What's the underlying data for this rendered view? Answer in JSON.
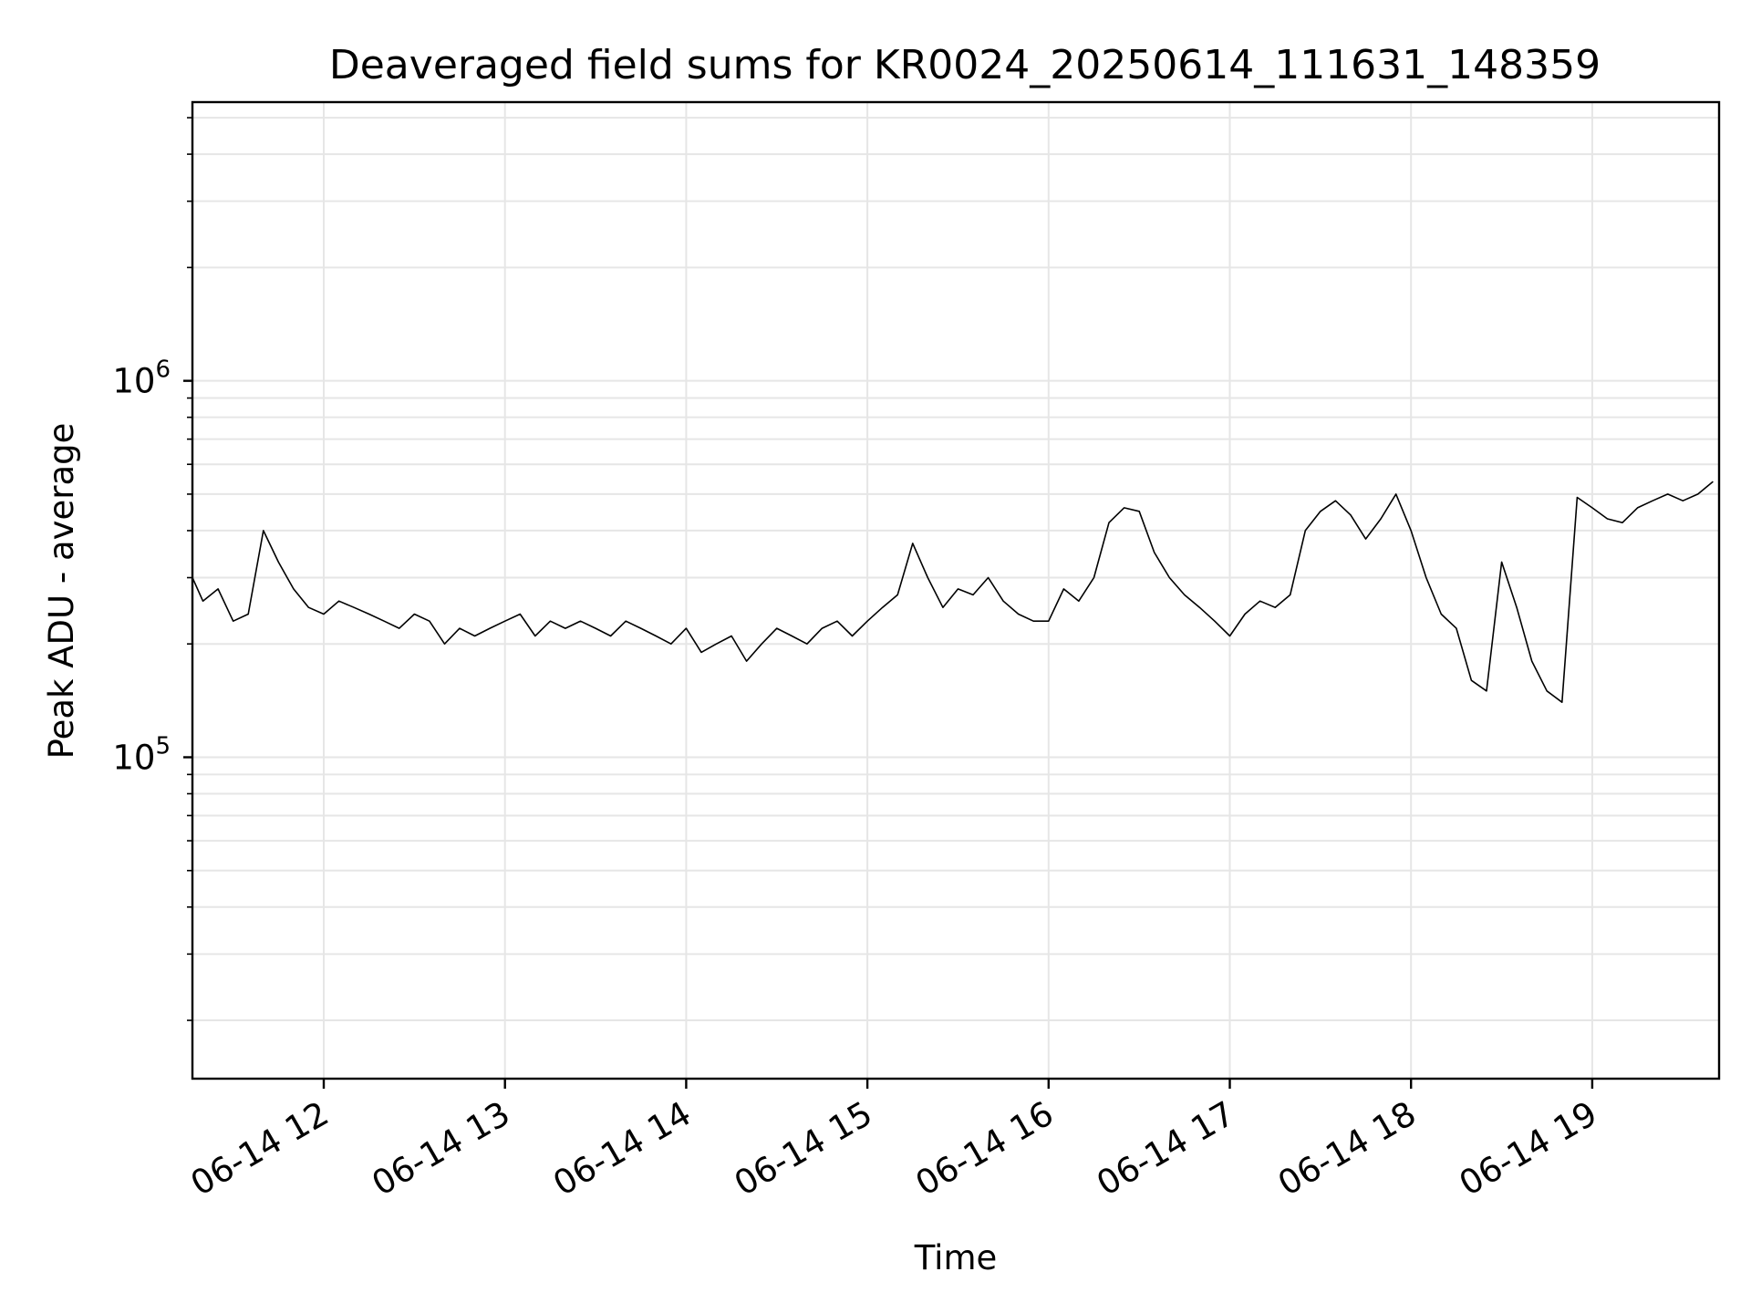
{
  "chart_data": {
    "type": "line",
    "title": "Deaveraged field sums for KR0024_20250614_111631_148359",
    "xlabel": "Time",
    "ylabel": "Peak ADU - average",
    "x_scale": "time",
    "y_scale": "log",
    "xlim": [
      "2025-06-14T11:16:31",
      "2025-06-14T19:42:00"
    ],
    "ylim": [
      14000,
      5500000
    ],
    "x_ticks": [
      {
        "value": "2025-06-14T12:00:00",
        "label": "06-14 12"
      },
      {
        "value": "2025-06-14T13:00:00",
        "label": "06-14 13"
      },
      {
        "value": "2025-06-14T14:00:00",
        "label": "06-14 14"
      },
      {
        "value": "2025-06-14T15:00:00",
        "label": "06-14 15"
      },
      {
        "value": "2025-06-14T16:00:00",
        "label": "06-14 16"
      },
      {
        "value": "2025-06-14T17:00:00",
        "label": "06-14 17"
      },
      {
        "value": "2025-06-14T18:00:00",
        "label": "06-14 18"
      },
      {
        "value": "2025-06-14T19:00:00",
        "label": "06-14 19"
      }
    ],
    "y_ticks": [
      {
        "value": 100000,
        "base": "10",
        "exp": "5"
      },
      {
        "value": 1000000,
        "base": "10",
        "exp": "6"
      }
    ],
    "grid": true,
    "line_color": "#000000",
    "grid_color": "#e6e6e6",
    "series": [
      {
        "x": [
          "2025-06-14T11:16:31",
          "2025-06-14T11:20:00",
          "2025-06-14T11:25:00",
          "2025-06-14T11:30:00",
          "2025-06-14T11:35:00",
          "2025-06-14T11:40:00",
          "2025-06-14T11:45:00",
          "2025-06-14T11:50:00",
          "2025-06-14T11:55:00",
          "2025-06-14T12:00:00",
          "2025-06-14T12:05:00",
          "2025-06-14T12:10:00",
          "2025-06-14T12:15:00",
          "2025-06-14T12:20:00",
          "2025-06-14T12:25:00",
          "2025-06-14T12:30:00",
          "2025-06-14T12:35:00",
          "2025-06-14T12:40:00",
          "2025-06-14T12:45:00",
          "2025-06-14T12:50:00",
          "2025-06-14T12:55:00",
          "2025-06-14T13:00:00",
          "2025-06-14T13:05:00",
          "2025-06-14T13:10:00",
          "2025-06-14T13:15:00",
          "2025-06-14T13:20:00",
          "2025-06-14T13:25:00",
          "2025-06-14T13:30:00",
          "2025-06-14T13:35:00",
          "2025-06-14T13:40:00",
          "2025-06-14T13:45:00",
          "2025-06-14T13:50:00",
          "2025-06-14T13:55:00",
          "2025-06-14T14:00:00",
          "2025-06-14T14:05:00",
          "2025-06-14T14:10:00",
          "2025-06-14T14:15:00",
          "2025-06-14T14:20:00",
          "2025-06-14T14:25:00",
          "2025-06-14T14:30:00",
          "2025-06-14T14:35:00",
          "2025-06-14T14:40:00",
          "2025-06-14T14:45:00",
          "2025-06-14T14:50:00",
          "2025-06-14T14:55:00",
          "2025-06-14T15:00:00",
          "2025-06-14T15:05:00",
          "2025-06-14T15:10:00",
          "2025-06-14T15:15:00",
          "2025-06-14T15:20:00",
          "2025-06-14T15:25:00",
          "2025-06-14T15:30:00",
          "2025-06-14T15:35:00",
          "2025-06-14T15:40:00",
          "2025-06-14T15:45:00",
          "2025-06-14T15:50:00",
          "2025-06-14T15:55:00",
          "2025-06-14T16:00:00",
          "2025-06-14T16:05:00",
          "2025-06-14T16:10:00",
          "2025-06-14T16:15:00",
          "2025-06-14T16:20:00",
          "2025-06-14T16:25:00",
          "2025-06-14T16:30:00",
          "2025-06-14T16:35:00",
          "2025-06-14T16:40:00",
          "2025-06-14T16:45:00",
          "2025-06-14T16:50:00",
          "2025-06-14T16:55:00",
          "2025-06-14T17:00:00",
          "2025-06-14T17:05:00",
          "2025-06-14T17:10:00",
          "2025-06-14T17:15:00",
          "2025-06-14T17:20:00",
          "2025-06-14T17:25:00",
          "2025-06-14T17:30:00",
          "2025-06-14T17:35:00",
          "2025-06-14T17:40:00",
          "2025-06-14T17:45:00",
          "2025-06-14T17:50:00",
          "2025-06-14T17:55:00",
          "2025-06-14T18:00:00",
          "2025-06-14T18:05:00",
          "2025-06-14T18:10:00",
          "2025-06-14T18:15:00",
          "2025-06-14T18:20:00",
          "2025-06-14T18:25:00",
          "2025-06-14T18:30:00",
          "2025-06-14T18:35:00",
          "2025-06-14T18:40:00",
          "2025-06-14T18:45:00",
          "2025-06-14T18:50:00",
          "2025-06-14T18:55:00",
          "2025-06-14T19:00:00",
          "2025-06-14T19:05:00",
          "2025-06-14T19:10:00",
          "2025-06-14T19:15:00",
          "2025-06-14T19:20:00",
          "2025-06-14T19:25:00",
          "2025-06-14T19:30:00",
          "2025-06-14T19:35:00",
          "2025-06-14T19:40:00"
        ],
        "values": [
          300000,
          260000,
          280000,
          230000,
          240000,
          400000,
          330000,
          280000,
          250000,
          240000,
          260000,
          250000,
          240000,
          230000,
          220000,
          240000,
          230000,
          200000,
          220000,
          210000,
          220000,
          230000,
          240000,
          210000,
          230000,
          220000,
          230000,
          220000,
          210000,
          230000,
          220000,
          210000,
          200000,
          220000,
          190000,
          200000,
          210000,
          180000,
          200000,
          220000,
          210000,
          200000,
          220000,
          230000,
          210000,
          230000,
          250000,
          270000,
          370000,
          300000,
          250000,
          280000,
          270000,
          300000,
          260000,
          240000,
          230000,
          230000,
          280000,
          260000,
          300000,
          420000,
          460000,
          450000,
          350000,
          300000,
          270000,
          250000,
          230000,
          210000,
          240000,
          260000,
          250000,
          270000,
          400000,
          450000,
          480000,
          440000,
          380000,
          430000,
          500000,
          400000,
          300000,
          240000,
          220000,
          160000,
          150000,
          330000,
          250000,
          180000,
          150000,
          140000,
          490000,
          460000,
          430000,
          420000,
          460000,
          480000,
          500000,
          480000,
          500000,
          540000
        ]
      }
    ]
  }
}
